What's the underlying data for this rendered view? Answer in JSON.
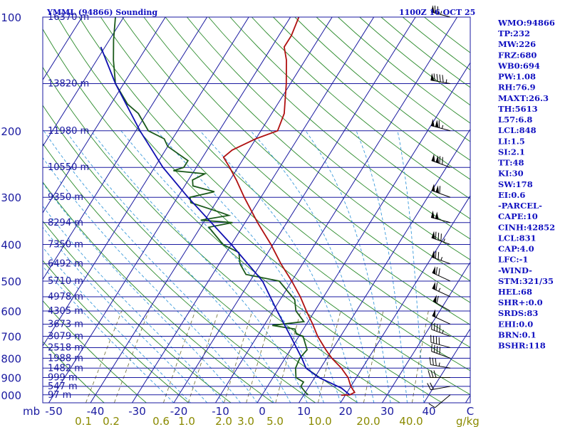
{
  "header": {
    "station": "YMML (94866) Sounding",
    "time": "1100Z 16 OCT 25"
  },
  "indices": [
    "WMO:94866",
    "TP:232",
    "MW:226",
    "FRZ:680",
    "WB0:694",
    "PW:1.08",
    "RH:76.9",
    "MAXT:26.3",
    "TH:5613",
    "L57:6.8",
    "LCL:848",
    "LI:1.5",
    "SI:2.1",
    "TT:48",
    "KI:30",
    "SW:178",
    "EI:0.6",
    "-PARCEL-",
    "CAPE:10",
    "CINH:42852",
    "LCL:831",
    "CAP:4.0",
    "LFC:-1",
    "-WIND-",
    "STM:321/35",
    "HEL:68",
    "SHR+:0.0",
    "SRDS:83",
    "EHI:0.0",
    "BRN:0.1",
    "BSHR:118"
  ],
  "colors": {
    "isobar": "#1a1aa0",
    "isotherm": "#1a1aa0",
    "dry_adiabat": "#2a8a2a",
    "moist_adiabat": "#3a9adb",
    "mixing_ratio": "#6b6b30",
    "temperature": "#b01010",
    "dewpoint": "#1a5a1a",
    "parcel": "#1010b0",
    "wind_barb": "#000000"
  },
  "chart_data": {
    "type": "line",
    "subtype": "skew-T log-P",
    "pressure_axis_label": "mb",
    "temperature_axis_unit": "",
    "mixing_ratio_unit": "g/kg",
    "pressure_levels": [
      100,
      200,
      300,
      400,
      500,
      600,
      700,
      800,
      900,
      1000
    ],
    "temperature_ticks": [
      -50,
      -40,
      -30,
      -20,
      -10,
      0,
      10,
      20,
      30,
      40
    ],
    "temperature_tick_label_extra": "C",
    "mixing_ratio_ticks": [
      "0.1",
      "0.2",
      "0.6",
      "1.0",
      "2.0",
      "3.0",
      "5.0",
      "10.0",
      "20.0",
      "40.0"
    ],
    "height_labels": [
      {
        "p": 100,
        "label": "16370 m"
      },
      {
        "p": 150,
        "label": "13820 m"
      },
      {
        "p": 200,
        "label": "11980 m"
      },
      {
        "p": 250,
        "label": "10550 m"
      },
      {
        "p": 300,
        "label": "9350 m"
      },
      {
        "p": 350,
        "label": "8294 m"
      },
      {
        "p": 400,
        "label": "7350 m"
      },
      {
        "p": 450,
        "label": "6492 m"
      },
      {
        "p": 500,
        "label": "5710 m"
      },
      {
        "p": 550,
        "label": "4978 m"
      },
      {
        "p": 600,
        "label": "4305 m"
      },
      {
        "p": 650,
        "label": "3673 m"
      },
      {
        "p": 700,
        "label": "3079 m"
      },
      {
        "p": 750,
        "label": "2518 m"
      },
      {
        "p": 800,
        "label": "1988 m"
      },
      {
        "p": 850,
        "label": "1482 m"
      },
      {
        "p": 900,
        "label": "999 m"
      },
      {
        "p": 950,
        "label": "547 m"
      },
      {
        "p": 1000,
        "label": "97 m"
      }
    ],
    "series": [
      {
        "key": "temperature",
        "points": [
          [
            1003,
            19.0
          ],
          [
            1000,
            21.0
          ],
          [
            985,
            21.8
          ],
          [
            950,
            20.0
          ],
          [
            900,
            18.0
          ],
          [
            850,
            15.0
          ],
          [
            800,
            11.2
          ],
          [
            760,
            8.5
          ],
          [
            700,
            4.5
          ],
          [
            650,
            1.5
          ],
          [
            600,
            -2.0
          ],
          [
            550,
            -5.6
          ],
          [
            500,
            -10.0
          ],
          [
            450,
            -15.2
          ],
          [
            400,
            -20.5
          ],
          [
            350,
            -27.0
          ],
          [
            300,
            -34.0
          ],
          [
            270,
            -38.5
          ],
          [
            250,
            -42.0
          ],
          [
            235,
            -45.0
          ],
          [
            225,
            -44.0
          ],
          [
            210,
            -40.0
          ],
          [
            200,
            -36.0
          ],
          [
            180,
            -37.0
          ],
          [
            150,
            -41.0
          ],
          [
            130,
            -44.5
          ],
          [
            120,
            -47.0
          ],
          [
            112,
            -47.0
          ],
          [
            100,
            -48.0
          ]
        ]
      },
      {
        "key": "dewpoint",
        "points": [
          [
            1000,
            11.0
          ],
          [
            985,
            10.0
          ],
          [
            950,
            8.0
          ],
          [
            925,
            8.0
          ],
          [
            900,
            5.5
          ],
          [
            850,
            4.0
          ],
          [
            800,
            3.5
          ],
          [
            760,
            4.0
          ],
          [
            700,
            1.0
          ],
          [
            690,
            -1.0
          ],
          [
            670,
            -2.0
          ],
          [
            655,
            -8.0
          ],
          [
            640,
            -1.0
          ],
          [
            600,
            -4.5
          ],
          [
            560,
            -6.5
          ],
          [
            500,
            -13.0
          ],
          [
            480,
            -22.0
          ],
          [
            450,
            -25.0
          ],
          [
            420,
            -27.0
          ],
          [
            400,
            -32.0
          ],
          [
            360,
            -38.0
          ],
          [
            350,
            -33.0
          ],
          [
            345,
            -41.0
          ],
          [
            335,
            -35.0
          ],
          [
            330,
            -37.0
          ],
          [
            310,
            -46.0
          ],
          [
            300,
            -47.0
          ],
          [
            290,
            -42.0
          ],
          [
            280,
            -48.0
          ],
          [
            270,
            -49.0
          ],
          [
            260,
            -47.0
          ],
          [
            255,
            -55.0
          ],
          [
            250,
            -53.0
          ],
          [
            240,
            -53.0
          ],
          [
            220,
            -60.0
          ],
          [
            210,
            -62.0
          ],
          [
            200,
            -67.0
          ],
          [
            180,
            -72.0
          ],
          [
            170,
            -76.0
          ],
          [
            150,
            -82.0
          ],
          [
            130,
            -86.0
          ],
          [
            115,
            -89.0
          ],
          [
            100,
            -92.0
          ]
        ]
      },
      {
        "key": "parcel",
        "points": [
          [
            1000,
            21.0
          ],
          [
            960,
            18.0
          ],
          [
            900,
            11.0
          ],
          [
            850,
            6.5
          ],
          [
            800,
            4.0
          ],
          [
            700,
            -2.0
          ],
          [
            600,
            -9.0
          ],
          [
            500,
            -17.0
          ],
          [
            400,
            -30.0
          ],
          [
            300,
            -47.5
          ],
          [
            250,
            -58.0
          ],
          [
            200,
            -69.0
          ],
          [
            150,
            -82.0
          ],
          [
            120,
            -91.0
          ]
        ]
      }
    ],
    "wind_barbs": [
      {
        "p": 1000,
        "dir": 230,
        "spd": 10
      },
      {
        "p": 950,
        "dir": 260,
        "spd": 20
      },
      {
        "p": 900,
        "dir": 270,
        "spd": 30
      },
      {
        "p": 850,
        "dir": 280,
        "spd": 35
      },
      {
        "p": 800,
        "dir": 290,
        "spd": 40
      },
      {
        "p": 750,
        "dir": 285,
        "spd": 40
      },
      {
        "p": 700,
        "dir": 290,
        "spd": 45
      },
      {
        "p": 650,
        "dir": 295,
        "spd": 55
      },
      {
        "p": 600,
        "dir": 300,
        "spd": 60
      },
      {
        "p": 550,
        "dir": 295,
        "spd": 65
      },
      {
        "p": 500,
        "dir": 295,
        "spd": 70
      },
      {
        "p": 450,
        "dir": 290,
        "spd": 75
      },
      {
        "p": 400,
        "dir": 290,
        "spd": 85
      },
      {
        "p": 350,
        "dir": 285,
        "spd": 100
      },
      {
        "p": 300,
        "dir": 290,
        "spd": 110
      },
      {
        "p": 250,
        "dir": 290,
        "spd": 120
      },
      {
        "p": 200,
        "dir": 285,
        "spd": 115
      },
      {
        "p": 150,
        "dir": 280,
        "spd": 95
      },
      {
        "p": 100,
        "dir": 285,
        "spd": 75
      }
    ]
  }
}
